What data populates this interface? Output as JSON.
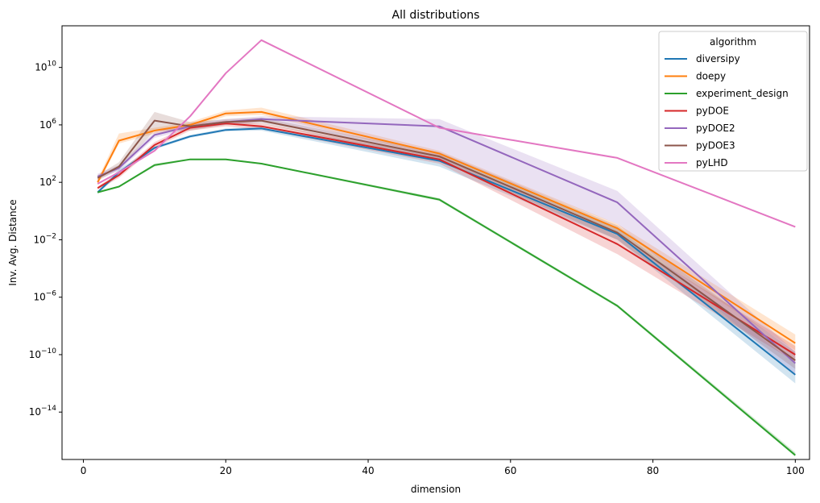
{
  "chart_data": {
    "type": "line",
    "title": "All distributions",
    "xlabel": "dimension",
    "ylabel": "Inv. Avg. Distance",
    "xlim": [
      -3,
      102
    ],
    "ylim_log10": [
      -17.3,
      12.9
    ],
    "yscale": "log",
    "x_ticks": [
      0,
      20,
      40,
      60,
      80,
      100
    ],
    "y_tick_exponents": [
      10,
      6,
      2,
      -2,
      -6,
      -10,
      -14
    ],
    "y_tick_base": "10",
    "grid": false,
    "legend": {
      "title": "algorithm",
      "placement": "top-right"
    },
    "series": [
      {
        "name": "diversipy",
        "color": "#1f77b4",
        "x": [
          2,
          5,
          10,
          15,
          20,
          25,
          50,
          75,
          100
        ],
        "log10_y": [
          1.3,
          2.7,
          4.4,
          5.2,
          5.65,
          5.75,
          3.5,
          -1.6,
          -11.4
        ],
        "log10_band": [
          [
            1.2,
            1.4
          ],
          [
            2.5,
            2.9
          ],
          [
            4.3,
            4.5
          ],
          [
            5.1,
            5.3
          ],
          [
            5.55,
            5.75
          ],
          [
            5.6,
            5.9
          ],
          [
            3.1,
            3.9
          ],
          [
            -2.0,
            -1.2
          ],
          [
            -12.0,
            -10.6
          ]
        ]
      },
      {
        "name": "doepy",
        "color": "#ff7f0e",
        "x": [
          2,
          5,
          10,
          15,
          20,
          25,
          50,
          75,
          100
        ],
        "log10_y": [
          2.0,
          4.9,
          5.6,
          6.0,
          6.8,
          6.9,
          4.0,
          -1.2,
          -9.2
        ],
        "log10_band": [
          [
            1.8,
            2.2
          ],
          [
            4.7,
            5.4
          ],
          [
            5.4,
            5.8
          ],
          [
            5.8,
            6.2
          ],
          [
            6.6,
            7.0
          ],
          [
            6.7,
            7.2
          ],
          [
            3.8,
            4.2
          ],
          [
            -1.6,
            -0.9
          ],
          [
            -9.7,
            -8.6
          ]
        ]
      },
      {
        "name": "experiment_design",
        "color": "#2ca02c",
        "x": [
          2,
          5,
          10,
          15,
          20,
          25,
          50,
          75,
          100
        ],
        "log10_y": [
          1.3,
          1.7,
          3.2,
          3.6,
          3.6,
          3.3,
          0.8,
          -6.6,
          -17.0
        ],
        "log10_band": [
          [
            1.25,
            1.35
          ],
          [
            1.65,
            1.75
          ],
          [
            3.1,
            3.3
          ],
          [
            3.55,
            3.65
          ],
          [
            3.55,
            3.65
          ],
          [
            3.25,
            3.35
          ],
          [
            0.7,
            0.9
          ],
          [
            -6.7,
            -6.5
          ],
          [
            -17.1,
            -16.8
          ]
        ]
      },
      {
        "name": "pyDOE",
        "color": "#d62728",
        "x": [
          2,
          5,
          10,
          15,
          20,
          25,
          50,
          75,
          100
        ],
        "log10_y": [
          1.6,
          2.5,
          4.6,
          5.8,
          6.1,
          5.9,
          3.6,
          -2.3,
          -10.0
        ],
        "log10_band": [
          [
            1.5,
            1.7
          ],
          [
            2.3,
            2.7
          ],
          [
            4.4,
            4.8
          ],
          [
            5.6,
            6.0
          ],
          [
            5.9,
            6.3
          ],
          [
            5.7,
            6.1
          ],
          [
            3.3,
            3.9
          ],
          [
            -3.0,
            -1.7
          ],
          [
            -10.5,
            -9.4
          ]
        ]
      },
      {
        "name": "pyDOE2",
        "color": "#9467bd",
        "x": [
          2,
          5,
          10,
          15,
          20,
          25,
          50,
          75,
          100
        ],
        "log10_y": [
          2.4,
          3.0,
          5.3,
          5.9,
          6.2,
          6.4,
          5.9,
          0.6,
          -10.6
        ],
        "log10_band": [
          [
            2.2,
            2.6
          ],
          [
            2.8,
            3.2
          ],
          [
            5.1,
            5.5
          ],
          [
            5.7,
            6.1
          ],
          [
            6.0,
            6.4
          ],
          [
            6.2,
            6.6
          ],
          [
            3.9,
            6.4
          ],
          [
            -0.9,
            1.4
          ],
          [
            -11.4,
            -9.8
          ]
        ]
      },
      {
        "name": "pyDOE3",
        "color": "#8c564b",
        "x": [
          2,
          5,
          10,
          15,
          20,
          25,
          50,
          75,
          100
        ],
        "log10_y": [
          2.3,
          3.1,
          6.3,
          5.9,
          6.2,
          6.3,
          3.8,
          -1.5,
          -10.4
        ],
        "log10_band": [
          [
            2.1,
            2.5
          ],
          [
            2.9,
            3.4
          ],
          [
            5.6,
            6.9
          ],
          [
            5.6,
            6.2
          ],
          [
            6.0,
            6.4
          ],
          [
            6.1,
            6.5
          ],
          [
            3.5,
            4.1
          ],
          [
            -2.0,
            -1.0
          ],
          [
            -11.0,
            -9.8
          ]
        ]
      },
      {
        "name": "pyLHD",
        "color": "#e377c2",
        "x": [
          2,
          5,
          10,
          15,
          20,
          25,
          50,
          75,
          100
        ],
        "log10_y": [
          1.9,
          2.7,
          4.2,
          6.6,
          9.6,
          11.9,
          5.8,
          3.7,
          -1.1
        ],
        "log10_band": [
          [
            1.85,
            1.95
          ],
          [
            2.65,
            2.75
          ],
          [
            4.15,
            4.25
          ],
          [
            6.55,
            6.65
          ],
          [
            9.55,
            9.65
          ],
          [
            11.85,
            11.95
          ],
          [
            5.75,
            5.85
          ],
          [
            3.65,
            3.75
          ],
          [
            -1.15,
            -1.05
          ]
        ]
      }
    ]
  }
}
